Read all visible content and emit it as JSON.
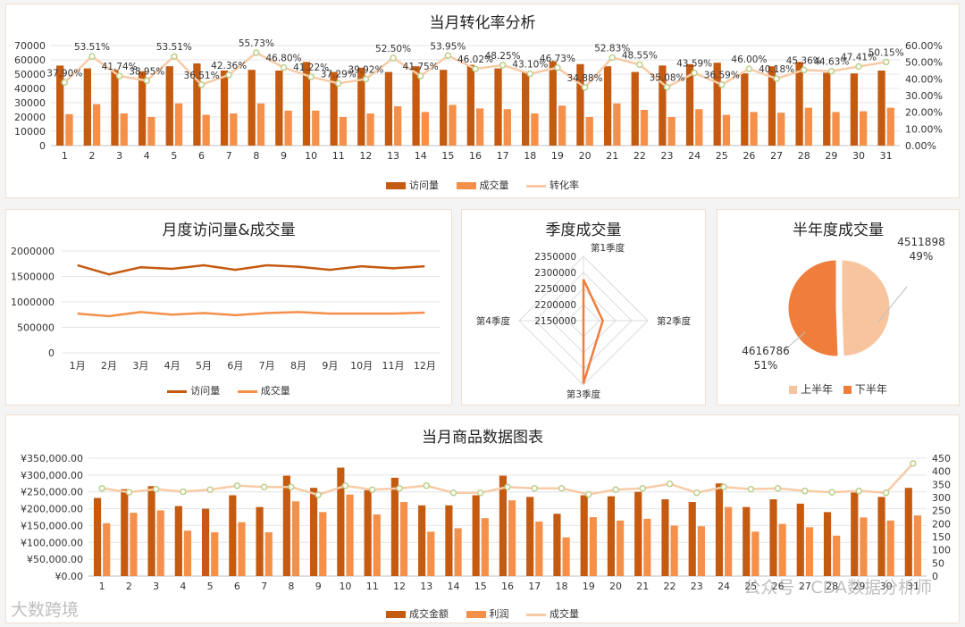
{
  "colors": {
    "visits": "#c55a11",
    "deals": "#f4904a",
    "rate": "#f8cba7",
    "upper": "#f8c49e",
    "lower": "#ef7d3c"
  },
  "watermarks": {
    "left": "大数跨境",
    "right": "公众号 · CDA数据分析师"
  },
  "chart_data": [
    {
      "id": "conversion",
      "type": "bar",
      "title": "当月转化率分析",
      "categories": [
        "1",
        "2",
        "3",
        "4",
        "5",
        "6",
        "7",
        "8",
        "9",
        "10",
        "11",
        "12",
        "13",
        "14",
        "15",
        "16",
        "17",
        "18",
        "19",
        "20",
        "21",
        "22",
        "23",
        "24",
        "25",
        "26",
        "27",
        "28",
        "29",
        "30",
        "31"
      ],
      "series": [
        {
          "name": "访问量",
          "type": "bar",
          "values": [
            56000,
            54000,
            53000,
            52000,
            55500,
            57500,
            52500,
            53000,
            52500,
            58500,
            51500,
            54500,
            51500,
            55500,
            53000,
            56500,
            54000,
            51500,
            59000,
            57000,
            55500,
            51500,
            56000,
            57000,
            58000,
            50500,
            55500,
            58500,
            51000,
            50500,
            52500
          ]
        },
        {
          "name": "成交量",
          "type": "bar",
          "values": [
            22000,
            29000,
            22500,
            20000,
            29500,
            21500,
            22500,
            29500,
            24500,
            24500,
            20000,
            22500,
            27500,
            23500,
            28500,
            26000,
            25500,
            22500,
            28000,
            20000,
            29500,
            25000,
            20000,
            25500,
            21500,
            23500,
            23000,
            26500,
            23500,
            24000,
            26500
          ]
        },
        {
          "name": "转化率",
          "type": "line",
          "axis": "right",
          "values": [
            37.9,
            53.51,
            41.74,
            38.95,
            53.51,
            36.51,
            42.36,
            55.73,
            46.8,
            41.22,
            37.29,
            39.92,
            52.5,
            41.75,
            53.95,
            46.02,
            48.25,
            43.1,
            46.73,
            34.88,
            52.83,
            48.55,
            35.08,
            43.59,
            36.59,
            46.0,
            40.18,
            45.36,
            44.63,
            47.41,
            50.15
          ]
        }
      ],
      "value_labels": [
        "37.90%",
        "53.51%",
        "41.74%",
        "38.95%",
        "53.51%",
        "36.51%",
        "42.36%",
        "55.73%",
        "46.80%",
        "41.22%",
        "37.29%",
        "39.92%",
        "52.50%",
        "41.75%",
        "53.95%",
        "46.02%",
        "48.25%",
        "43.10%",
        "46.73%",
        "34.88%",
        "52.83%",
        "48.55%",
        "35.08%",
        "43.59%",
        "36.59%",
        "46.00%",
        "40.18%",
        "45.36%",
        "44.63%",
        "47.41%",
        "50.15%"
      ],
      "ylim": [
        0,
        70000
      ],
      "yticks": [
        "0",
        "10000",
        "20000",
        "30000",
        "40000",
        "50000",
        "60000",
        "70000"
      ],
      "y2lim": [
        0,
        60
      ],
      "y2ticks": [
        "0.00%",
        "10.00%",
        "20.00%",
        "30.00%",
        "40.00%",
        "50.00%",
        "60.00%"
      ],
      "legend": [
        "访问量",
        "成交量",
        "转化率"
      ],
      "legend_position": "bottom"
    },
    {
      "id": "monthly",
      "type": "line",
      "title": "月度访问量&成交量",
      "categories": [
        "1月",
        "2月",
        "3月",
        "4月",
        "5月",
        "6月",
        "7月",
        "8月",
        "9月",
        "10月",
        "11月",
        "12月"
      ],
      "series": [
        {
          "name": "访问量",
          "values": [
            1720000,
            1540000,
            1680000,
            1650000,
            1720000,
            1630000,
            1720000,
            1690000,
            1630000,
            1700000,
            1660000,
            1700000
          ]
        },
        {
          "name": "成交量",
          "values": [
            770000,
            720000,
            800000,
            750000,
            780000,
            740000,
            780000,
            800000,
            770000,
            770000,
            770000,
            790000
          ]
        }
      ],
      "ylim": [
        0,
        2000000
      ],
      "yticks": [
        "0",
        "500000",
        "1000000",
        "1500000",
        "2000000"
      ],
      "legend": [
        "访问量",
        "成交量"
      ],
      "legend_position": "bottom"
    },
    {
      "id": "quarterly",
      "type": "radar",
      "title": "季度成交量",
      "categories": [
        "第1季度",
        "第2季度",
        "第3季度",
        "第4季度"
      ],
      "values": [
        2278000,
        2210000,
        2345000,
        2150000
      ],
      "rlim": [
        2150000,
        2350000
      ],
      "rticks": [
        "2150000",
        "2200000",
        "2250000",
        "2300000",
        "2350000"
      ]
    },
    {
      "id": "halfyear",
      "type": "pie",
      "title": "半年度成交量",
      "slices": [
        {
          "name": "上半年",
          "value": 4511898,
          "value_text": "4511898",
          "pct_text": "49%"
        },
        {
          "name": "下半年",
          "value": 4616786,
          "value_text": "4616786",
          "pct_text": "51%"
        }
      ],
      "legend": [
        "上半年",
        "下半年"
      ],
      "legend_position": "bottom"
    },
    {
      "id": "product",
      "type": "bar",
      "title": "当月商品数据图表",
      "categories": [
        "1",
        "2",
        "3",
        "4",
        "5",
        "6",
        "7",
        "8",
        "9",
        "10",
        "11",
        "12",
        "13",
        "14",
        "15",
        "16",
        "17",
        "18",
        "19",
        "20",
        "21",
        "22",
        "23",
        "24",
        "25",
        "26",
        "27",
        "28",
        "29",
        "30",
        "31"
      ],
      "series": [
        {
          "name": "成交金额",
          "type": "bar",
          "values": [
            232000,
            258000,
            267000,
            208000,
            200000,
            240000,
            205000,
            298000,
            262000,
            322000,
            255000,
            292000,
            210000,
            210000,
            240000,
            298000,
            235000,
            185000,
            240000,
            237000,
            250000,
            228000,
            220000,
            275000,
            205000,
            228000,
            215000,
            190000,
            248000,
            235000,
            262000
          ]
        },
        {
          "name": "利润",
          "type": "bar",
          "values": [
            157000,
            188000,
            195000,
            135000,
            130000,
            160000,
            130000,
            222000,
            190000,
            242000,
            183000,
            220000,
            132000,
            142000,
            172000,
            225000,
            162000,
            115000,
            175000,
            165000,
            170000,
            150000,
            148000,
            205000,
            132000,
            155000,
            145000,
            120000,
            174000,
            165000,
            180000
          ]
        },
        {
          "name": "成交量",
          "type": "line",
          "axis": "right",
          "values": [
            335,
            320,
            332,
            322,
            330,
            345,
            340,
            340,
            310,
            345,
            330,
            335,
            345,
            318,
            318,
            340,
            335,
            335,
            312,
            330,
            335,
            352,
            318,
            340,
            332,
            335,
            325,
            320,
            325,
            318,
            430
          ]
        }
      ],
      "ylim": [
        0,
        350000
      ],
      "yticks": [
        "¥0.00",
        "¥50,000.00",
        "¥100,000.00",
        "¥150,000.00",
        "¥200,000.00",
        "¥250,000.00",
        "¥300,000.00",
        "¥350,000.00"
      ],
      "y2lim": [
        0,
        450
      ],
      "y2ticks": [
        "0",
        "50",
        "100",
        "150",
        "200",
        "250",
        "300",
        "350",
        "400",
        "450"
      ],
      "legend": [
        "成交金额",
        "利润",
        "成交量"
      ],
      "legend_position": "bottom"
    }
  ]
}
